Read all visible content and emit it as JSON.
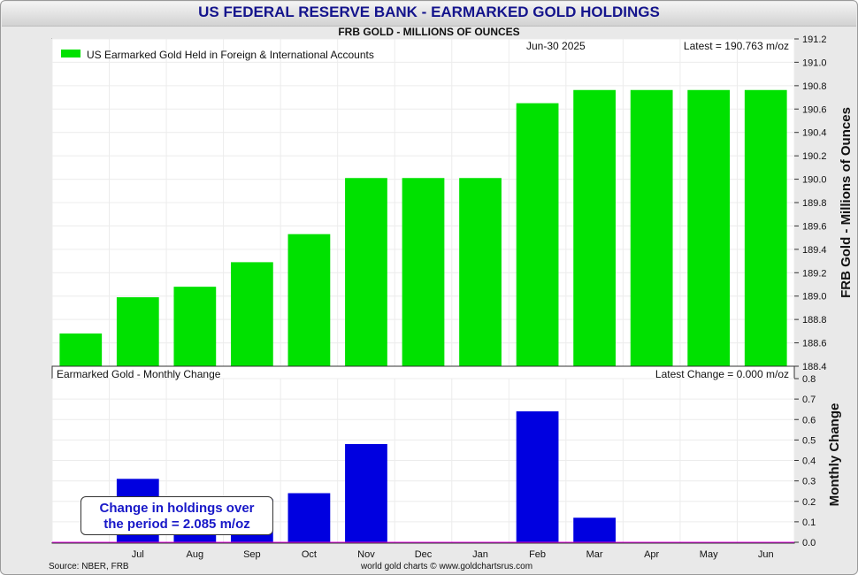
{
  "title": "US FEDERAL RESERVE BANK - EARMARKED GOLD HOLDINGS",
  "subtitle": "FRB GOLD - MILLIONS OF OUNCES",
  "colors": {
    "holdings": "#00e100",
    "change": "#0000e0",
    "title": "#14148c",
    "zero_line": "#e000e0"
  },
  "chart_data": [
    {
      "type": "bar",
      "legend": "US Earmarked Gold Held in Foreign & International Accounts",
      "date_label": "Jun-30  2025",
      "latest_label": "Latest = 190.763 m/oz",
      "ylabel": "FRB Gold - Millions of Ounces",
      "ylim": [
        188.4,
        191.2
      ],
      "yticks": [
        "188.4",
        "188.6",
        "188.8",
        "189.0",
        "189.2",
        "189.4",
        "189.6",
        "189.8",
        "190.0",
        "190.2",
        "190.4",
        "190.6",
        "190.8",
        "191.0",
        "191.2"
      ],
      "values": [
        188.68,
        188.99,
        189.08,
        189.29,
        189.53,
        190.01,
        190.01,
        190.01,
        190.65,
        190.763,
        190.763,
        190.763,
        190.763
      ],
      "grid": true
    },
    {
      "type": "bar",
      "title": "Earmarked Gold - Monthly Change",
      "latest_label": "Latest Change = 0.000 m/oz",
      "ylabel": "Monthly Change",
      "ylim": [
        0,
        0.8
      ],
      "yticks": [
        "0.0",
        "0.1",
        "0.2",
        "0.3",
        "0.4",
        "0.5",
        "0.6",
        "0.7",
        "0.8"
      ],
      "categories": [
        "",
        "Jul",
        "Aug",
        "Sep",
        "Oct",
        "Nov",
        "Dec",
        "Jan",
        "Feb",
        "Mar",
        "Apr",
        "May",
        "Jun"
      ],
      "values": [
        0,
        0.31,
        0.09,
        0.21,
        0.24,
        0.48,
        0,
        0,
        0.64,
        0.12,
        0,
        0,
        0
      ],
      "grid": true
    }
  ],
  "callout": {
    "line1": "Change in holdings over",
    "line2": "the period = 2.085 m/oz"
  },
  "footer": {
    "source": "Source: NBER, FRB",
    "credit": "world gold charts © www.goldchartsrus.com"
  }
}
